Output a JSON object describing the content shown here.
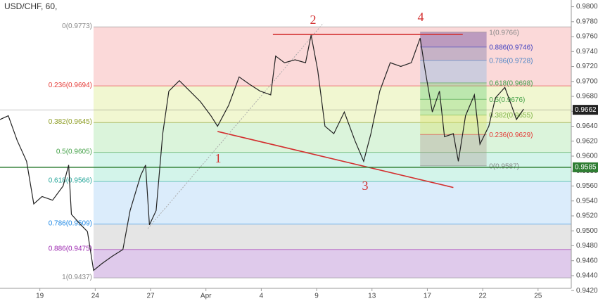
{
  "chart_data": {
    "type": "line",
    "title": "USD/CHF, 60,",
    "color": "#222222",
    "x": [
      -0.72,
      -0.57,
      -0.41,
      -0.24,
      -0.11,
      0.04,
      0.23,
      0.42,
      0.52,
      0.57,
      0.74,
      0.86,
      0.97,
      1.12,
      1.31,
      1.5,
      1.63,
      1.82,
      1.91,
      1.98,
      2.1,
      2.22,
      2.33,
      2.52,
      2.71,
      2.9,
      3.09,
      3.21,
      3.41,
      3.6,
      3.79,
      3.98,
      4.17,
      4.26,
      4.42,
      4.61,
      4.8,
      4.9,
      5.02,
      5.15,
      5.31,
      5.5,
      5.69,
      5.85,
      5.98,
      6.14,
      6.33,
      6.52,
      6.71,
      6.87,
      6.96,
      7.09,
      7.22,
      7.31,
      7.47,
      7.56,
      7.69,
      7.85,
      7.95,
      8.11,
      8.23,
      8.4,
      8.52,
      8.61,
      8.74
    ],
    "values": [
      0.9649,
      0.9654,
      0.9621,
      0.9593,
      0.9536,
      0.9546,
      0.9541,
      0.956,
      0.9588,
      0.9522,
      0.9508,
      0.9499,
      0.9447,
      0.9456,
      0.9466,
      0.9475,
      0.9527,
      0.9574,
      0.9588,
      0.9508,
      0.9527,
      0.963,
      0.9687,
      0.9701,
      0.9687,
      0.9673,
      0.9654,
      0.964,
      0.9668,
      0.9706,
      0.9696,
      0.9687,
      0.9682,
      0.9734,
      0.9725,
      0.9729,
      0.9725,
      0.9762,
      0.9715,
      0.964,
      0.963,
      0.9659,
      0.9621,
      0.9593,
      0.963,
      0.9687,
      0.9725,
      0.972,
      0.9725,
      0.9758,
      0.9715,
      0.9659,
      0.9687,
      0.9626,
      0.963,
      0.9593,
      0.9654,
      0.9682,
      0.9616,
      0.964,
      0.9678,
      0.9692,
      0.9668,
      0.9649,
      0.9663
    ],
    "xlim": [
      -0.72,
      9.6
    ],
    "ylim": [
      0.9423,
      0.9809
    ],
    "xticks": [
      {
        "value": 0,
        "label": "19"
      },
      {
        "value": 1,
        "label": "24"
      },
      {
        "value": 2,
        "label": "27"
      },
      {
        "value": 3,
        "label": "Apr"
      },
      {
        "value": 4,
        "label": "4"
      },
      {
        "value": 5,
        "label": "9"
      },
      {
        "value": 6,
        "label": "13"
      },
      {
        "value": 7,
        "label": "17"
      },
      {
        "value": 8,
        "label": "22"
      },
      {
        "value": 9,
        "label": "25"
      }
    ],
    "yticks": [
      {
        "value": 0.98,
        "label": "0.9800"
      },
      {
        "value": 0.978,
        "label": "0.9780"
      },
      {
        "value": 0.976,
        "label": "0.9760"
      },
      {
        "value": 0.974,
        "label": "0.9740"
      },
      {
        "value": 0.972,
        "label": "0.9720"
      },
      {
        "value": 0.97,
        "label": "0.9700"
      },
      {
        "value": 0.968,
        "label": "0.9680"
      },
      {
        "value": 0.966,
        "label": "0.9660"
      },
      {
        "value": 0.964,
        "label": "0.9640"
      },
      {
        "value": 0.962,
        "label": "0.9620"
      },
      {
        "value": 0.96,
        "label": "0.9600"
      },
      {
        "value": 0.958,
        "label": "0.9580"
      },
      {
        "value": 0.956,
        "label": "0.9560"
      },
      {
        "value": 0.954,
        "label": "0.9540"
      },
      {
        "value": 0.952,
        "label": "0.9520"
      },
      {
        "value": 0.95,
        "label": "0.9500"
      },
      {
        "value": 0.948,
        "label": "0.9480"
      },
      {
        "value": 0.946,
        "label": "0.9460"
      },
      {
        "value": 0.944,
        "label": "0.9440"
      },
      {
        "value": 0.942,
        "label": "0.9420"
      }
    ],
    "fib_left": {
      "x": [
        0.97,
        9.6
      ],
      "levels": [
        {
          "value": 0.9773,
          "label": "0(0.9773)",
          "color": "#888888",
          "zone": "rgba(239,83,80,0.22)"
        },
        {
          "value": 0.9694,
          "label": "0.236(0.9694)",
          "color": "#e53935",
          "zone": "rgba(205,225,90,0.28)"
        },
        {
          "value": 0.9645,
          "label": "0.382(0.9645)",
          "color": "#8a9a1e",
          "zone": "rgba(110,210,110,0.25)"
        },
        {
          "value": 0.9605,
          "label": "0.5(0.9605)",
          "color": "#43a047",
          "zone": "rgba(80,210,170,0.25)"
        },
        {
          "value": 0.9566,
          "label": "0.618(0.9566)",
          "color": "#26a69a",
          "zone": "rgba(90,170,235,0.22)"
        },
        {
          "value": 0.9509,
          "label": "0.786(0.9509)",
          "color": "#1e88e5",
          "zone": "rgba(150,150,150,0.25)"
        },
        {
          "value": 0.9475,
          "label": "0.886(0.9475)",
          "color": "#9c27b0",
          "zone": "rgba(150,80,190,0.3)"
        },
        {
          "value": 0.9437,
          "label": "1(0.9437)",
          "color": "#888888",
          "zone": null
        }
      ]
    },
    "fib_right": {
      "x": [
        6.87,
        8.07
      ],
      "levels": [
        {
          "value": 0.9766,
          "label": "1(0.9766)",
          "color": "#888888",
          "zone": "rgba(110,80,160,0.45)"
        },
        {
          "value": 0.9746,
          "label": "0.886(0.9746)",
          "color": "#3f3fbf",
          "zone": "rgba(120,120,170,0.4)"
        },
        {
          "value": 0.9728,
          "label": "0.786(0.9728)",
          "color": "#4f86c6",
          "zone": "rgba(120,180,230,0.35)"
        },
        {
          "value": 0.9698,
          "label": "0.618(0.9698)",
          "color": "#43a047",
          "zone": "rgba(90,200,110,0.35)"
        },
        {
          "value": 0.9676,
          "label": "0.5(0.9676)",
          "color": "#43a047",
          "zone": "rgba(120,210,110,0.35)"
        },
        {
          "value": 0.9655,
          "label": "0.382(0.9655)",
          "color": "#7cb342",
          "zone": "rgba(215,225,110,0.4)"
        },
        {
          "value": 0.9629,
          "label": "0.236(0.9629)",
          "color": "#e53935",
          "zone": "rgba(170,150,140,0.35)"
        },
        {
          "value": 0.9587,
          "label": "0(0.9587)",
          "color": "#888888",
          "zone": null
        }
      ]
    },
    "trend_lines": [
      {
        "color": "#d32f2f",
        "x": [
          3.21,
          7.47
        ],
        "values": [
          0.9633,
          0.9558
        ]
      },
      {
        "color": "#d32f2f",
        "x": [
          4.21,
          7.64
        ],
        "values": [
          0.9763,
          0.9763
        ]
      },
      {
        "color": "#aaaaaa",
        "x": [
          1.95,
          5.12
        ],
        "values": [
          0.9503,
          0.9778
        ]
      }
    ],
    "price_tags": [
      {
        "value": 0.9662,
        "label": "0.9662",
        "color": "#222222"
      },
      {
        "value": 0.9585,
        "label": "0.9585",
        "color": "#2e7d32"
      }
    ],
    "annotations": [
      "1",
      "2",
      "3",
      "4"
    ]
  }
}
